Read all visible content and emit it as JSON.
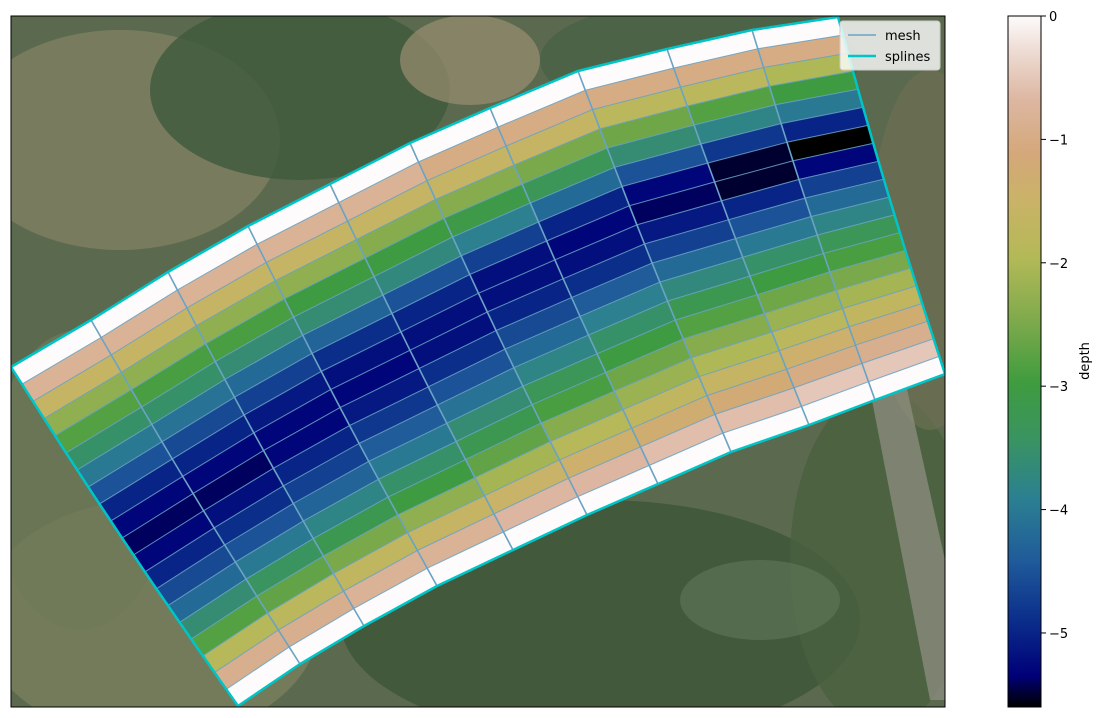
{
  "chart_data": {
    "type": "heatmap",
    "title": "",
    "background": "satellite image of river bend with vegetation",
    "grid": {
      "rows": 20,
      "columns": 10,
      "row_direction": "bank to bank (top bank to bottom bank)",
      "column_direction": "along channel, left to right",
      "cell_values": [
        [
          0,
          0,
          0,
          0,
          0,
          0,
          0,
          0,
          0,
          0
        ],
        [
          -0.8,
          -0.8,
          -0.8,
          -0.8,
          -0.8,
          -1.0,
          -1.0,
          -1.0,
          -1.0,
          -1.0
        ],
        [
          -1.6,
          -1.6,
          -1.6,
          -1.6,
          -1.6,
          -1.6,
          -1.6,
          -1.8,
          -1.8,
          -2.0
        ],
        [
          -2.3,
          -2.3,
          -2.3,
          -2.3,
          -2.4,
          -2.4,
          -2.5,
          -2.6,
          -2.8,
          -3.0
        ],
        [
          -2.8,
          -2.9,
          -2.9,
          -3.0,
          -3.0,
          -3.1,
          -3.3,
          -3.6,
          -3.8,
          -4.0
        ],
        [
          -3.5,
          -3.5,
          -3.6,
          -3.6,
          -3.7,
          -3.9,
          -4.2,
          -4.5,
          -4.8,
          -5.0
        ],
        [
          -4.0,
          -4.1,
          -4.2,
          -4.3,
          -4.5,
          -4.7,
          -5.0,
          -5.3,
          -5.5,
          -5.6
        ],
        [
          -4.5,
          -4.6,
          -4.7,
          -4.9,
          -5.0,
          -5.2,
          -5.3,
          -5.4,
          -5.5,
          -5.3
        ],
        [
          -5.0,
          -5.0,
          -5.1,
          -5.2,
          -5.2,
          -5.2,
          -5.2,
          -5.1,
          -5.0,
          -4.7
        ],
        [
          -5.3,
          -5.3,
          -5.3,
          -5.3,
          -5.2,
          -5.0,
          -4.9,
          -4.7,
          -4.5,
          -4.2
        ],
        [
          -5.4,
          -5.4,
          -5.3,
          -5.1,
          -4.9,
          -4.6,
          -4.4,
          -4.2,
          -4.0,
          -3.8
        ],
        [
          -5.3,
          -5.2,
          -5.0,
          -4.8,
          -4.5,
          -4.2,
          -3.9,
          -3.7,
          -3.5,
          -3.3
        ],
        [
          -5.0,
          -4.9,
          -4.7,
          -4.4,
          -4.1,
          -3.8,
          -3.5,
          -3.2,
          -3.0,
          -2.9
        ],
        [
          -4.6,
          -4.5,
          -4.3,
          -4.0,
          -3.6,
          -3.3,
          -3.0,
          -2.8,
          -2.6,
          -2.5
        ],
        [
          -4.2,
          -4.0,
          -3.8,
          -3.5,
          -3.2,
          -2.9,
          -2.6,
          -2.4,
          -2.2,
          -2.1
        ],
        [
          -3.6,
          -3.4,
          -3.2,
          -3.0,
          -2.7,
          -2.4,
          -2.2,
          -2.0,
          -1.8,
          -1.7
        ],
        [
          -2.8,
          -2.7,
          -2.5,
          -2.3,
          -2.1,
          -1.9,
          -1.7,
          -1.6,
          -1.4,
          -1.3
        ],
        [
          -1.9,
          -1.8,
          -1.7,
          -1.6,
          -1.5,
          -1.4,
          -1.3,
          -1.2,
          -1.0,
          -0.9
        ],
        [
          -0.9,
          -0.9,
          -0.8,
          -0.8,
          -0.7,
          -0.7,
          -0.6,
          -0.6,
          -0.5,
          -0.5
        ],
        [
          0,
          0,
          0,
          0,
          0,
          0,
          0,
          0,
          0,
          0
        ]
      ]
    },
    "series": [
      {
        "name": "mesh",
        "color": "#6aa3c4",
        "style": "thin line"
      },
      {
        "name": "splines",
        "color": "#00c5c8",
        "style": "thick line"
      }
    ],
    "legend": {
      "placement": "top-right"
    },
    "colorbar": {
      "label": "depth",
      "colormap": "gist_earth",
      "range": [
        -5.6,
        0
      ],
      "ticks": [
        0,
        -1,
        -2,
        -3,
        -4,
        -5
      ],
      "tick_labels": [
        "0",
        "−1",
        "−2",
        "−3",
        "−4",
        "−5"
      ]
    }
  }
}
